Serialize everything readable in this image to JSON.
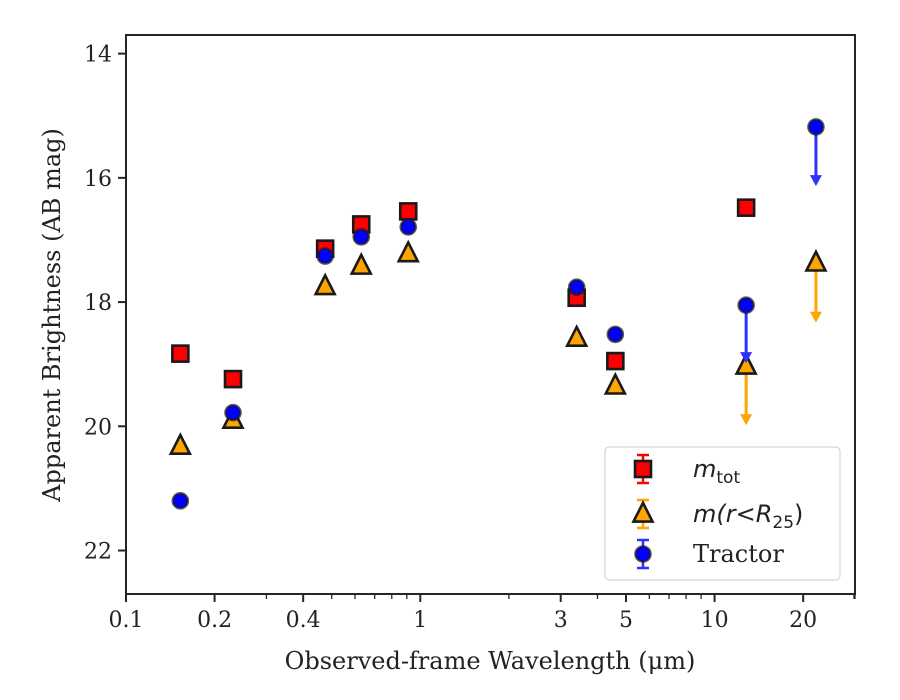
{
  "chart_data": {
    "type": "scatter",
    "xlabel": "Observed-frame Wavelength (μm)",
    "ylabel": "Apparent Brightness (AB mag)",
    "xscale": "log",
    "xlim": [
      0.1,
      30
    ],
    "ylim": [
      22.7,
      13.7
    ],
    "y_inverted": true,
    "grid": false,
    "legend_position": "lower-right",
    "x_ticks": [
      {
        "value": 0.1,
        "label": "0.1"
      },
      {
        "value": 0.2,
        "label": "0.2"
      },
      {
        "value": 0.4,
        "label": "0.4"
      },
      {
        "value": 1,
        "label": "1"
      },
      {
        "value": 3,
        "label": "3"
      },
      {
        "value": 5,
        "label": "5"
      },
      {
        "value": 10,
        "label": "10"
      },
      {
        "value": 20,
        "label": "20"
      }
    ],
    "y_ticks": [
      {
        "value": 14,
        "label": "14"
      },
      {
        "value": 16,
        "label": "16"
      },
      {
        "value": 18,
        "label": "18"
      },
      {
        "value": 20,
        "label": "20"
      },
      {
        "value": 22,
        "label": "22"
      }
    ],
    "series": [
      {
        "name": "m_tot",
        "label_base": "m",
        "label_sub": "tot",
        "marker": "square",
        "color": "#ff0000",
        "errcolor": "#ff0000",
        "points": [
          {
            "x": 0.153,
            "y": 18.83
          },
          {
            "x": 0.231,
            "y": 19.24
          },
          {
            "x": 0.475,
            "y": 17.14
          },
          {
            "x": 0.63,
            "y": 16.75
          },
          {
            "x": 0.91,
            "y": 16.54
          },
          {
            "x": 3.4,
            "y": 17.93
          },
          {
            "x": 4.6,
            "y": 18.95
          },
          {
            "x": 12.8,
            "y": 16.48
          }
        ]
      },
      {
        "name": "m(r<R25)",
        "label_base": "m(r<R",
        "label_sub": "25",
        "label_close": ")",
        "marker": "triangle",
        "color": "#ffa500",
        "errcolor": "#ffa500",
        "points": [
          {
            "x": 0.153,
            "y": 20.32
          },
          {
            "x": 0.231,
            "y": 19.9
          },
          {
            "x": 0.475,
            "y": 17.75
          },
          {
            "x": 0.63,
            "y": 17.42
          },
          {
            "x": 0.91,
            "y": 17.22
          },
          {
            "x": 3.4,
            "y": 18.58
          },
          {
            "x": 4.6,
            "y": 19.35
          },
          {
            "x": 12.8,
            "y": 19.03,
            "upper_limit": true,
            "arrow_to": 19.95
          },
          {
            "x": 22.1,
            "y": 17.37,
            "upper_limit": true,
            "arrow_to": 18.3
          }
        ]
      },
      {
        "name": "Tractor",
        "marker": "circle",
        "color": "#0000ff",
        "errcolor": "#3030ff",
        "points": [
          {
            "x": 0.153,
            "y": 21.2
          },
          {
            "x": 0.231,
            "y": 19.78
          },
          {
            "x": 0.475,
            "y": 17.26
          },
          {
            "x": 0.63,
            "y": 16.95
          },
          {
            "x": 0.91,
            "y": 16.79
          },
          {
            "x": 3.4,
            "y": 17.76
          },
          {
            "x": 4.6,
            "y": 18.52
          },
          {
            "x": 12.8,
            "y": 18.05,
            "upper_limit": true,
            "arrow_to": 18.95
          },
          {
            "x": 22.1,
            "y": 15.18,
            "upper_limit": true,
            "arrow_to": 16.1
          }
        ]
      }
    ]
  }
}
